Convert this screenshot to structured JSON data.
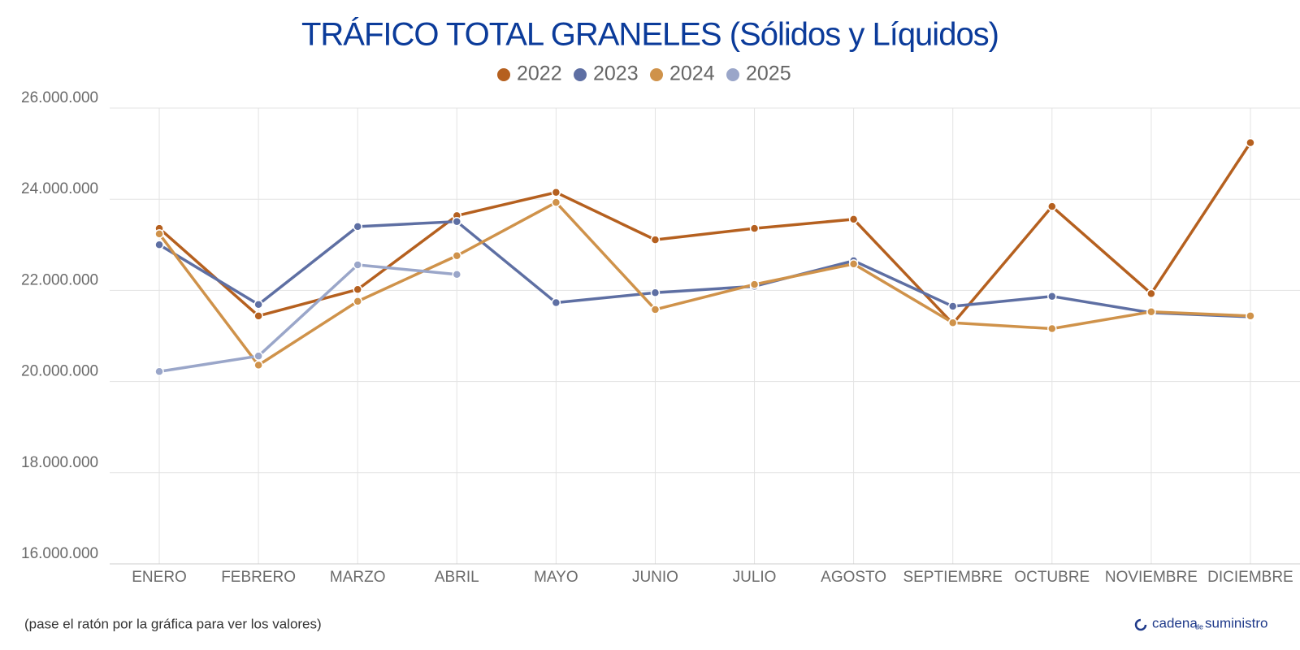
{
  "chart_data": {
    "type": "line",
    "title": "TRÁFICO TOTAL GRANELES (Sólidos y Líquidos)",
    "categories": [
      "ENERO",
      "FEBRERO",
      "MARZO",
      "ABRIL",
      "MAYO",
      "JUNIO",
      "JULIO",
      "AGOSTO",
      "SEPTIEMBRE",
      "OCTUBRE",
      "NOVIEMBRE",
      "DICIEMBRE"
    ],
    "series": [
      {
        "name": "2022",
        "color": "#b5601f",
        "values": [
          23360000,
          21440000,
          22020000,
          23640000,
          24150000,
          23110000,
          23360000,
          23560000,
          21270000,
          23840000,
          21930000,
          25240000
        ]
      },
      {
        "name": "2023",
        "color": "#5e6fa3",
        "values": [
          23000000,
          21690000,
          23400000,
          23510000,
          21730000,
          21950000,
          22090000,
          22650000,
          21650000,
          21870000,
          21510000,
          21420000
        ]
      },
      {
        "name": "2024",
        "color": "#cf924a",
        "values": [
          23240000,
          20360000,
          21760000,
          22760000,
          23930000,
          21580000,
          22130000,
          22580000,
          21290000,
          21160000,
          21530000,
          21440000
        ]
      },
      {
        "name": "2025",
        "color": "#9aa6c9",
        "values": [
          20220000,
          20560000,
          22560000,
          22350000,
          null,
          null,
          null,
          null,
          null,
          null,
          null,
          null
        ]
      }
    ],
    "ylim": [
      16000000,
      26000000
    ],
    "yticks": [
      {
        "value": 16000000,
        "label": "16.000.000"
      },
      {
        "value": 18000000,
        "label": "18.000.000"
      },
      {
        "value": 20000000,
        "label": "20.000.000"
      },
      {
        "value": 22000000,
        "label": "22.000.000"
      },
      {
        "value": 24000000,
        "label": "24.000.000"
      },
      {
        "value": 26000000,
        "label": "26.000.000"
      }
    ],
    "grid": true,
    "legend": "top",
    "footnote": "(pase el ratón por la gráfica para ver los valores)",
    "brand": [
      "cadena",
      "de",
      "suministro"
    ]
  }
}
